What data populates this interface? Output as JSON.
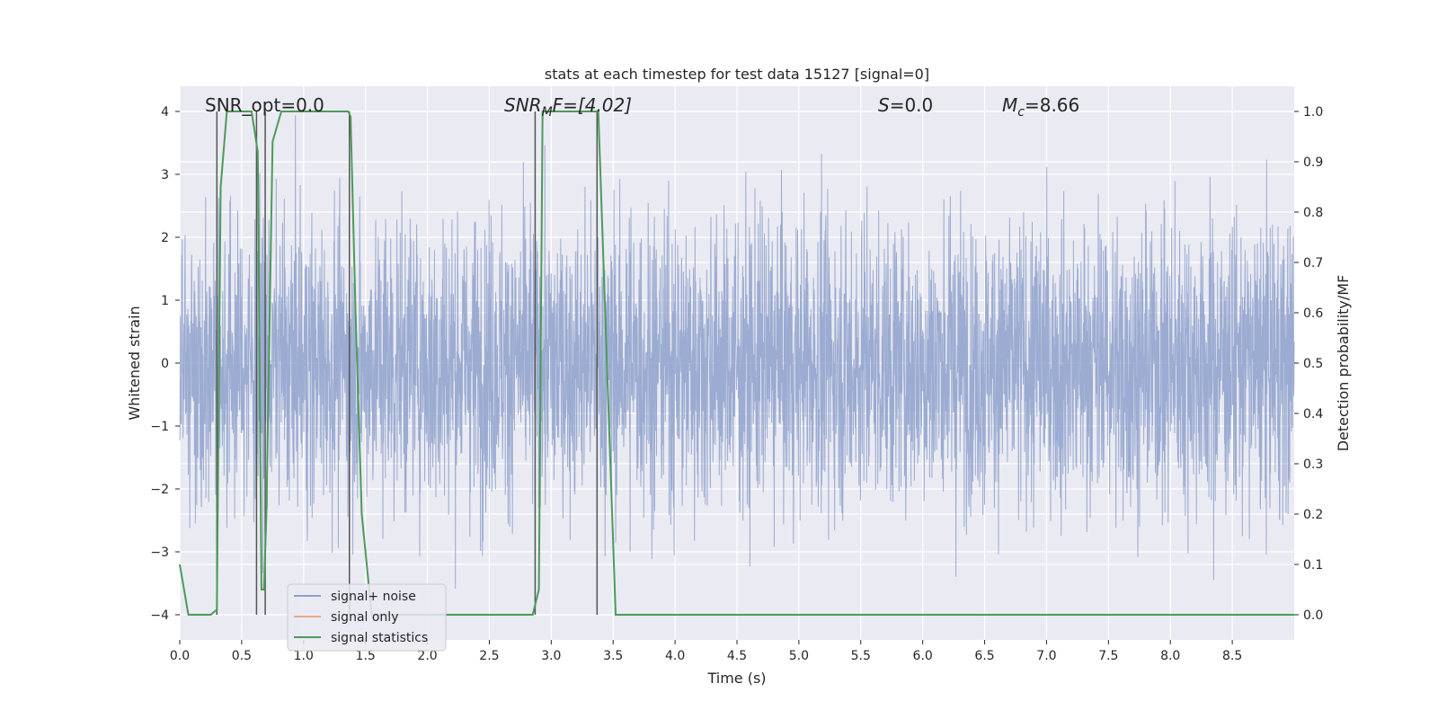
{
  "chart_data": {
    "type": "line",
    "title": "stats at each timestep for test data 15127 [signal=0]",
    "xlabel": "Time (s)",
    "ylabel": "Whitened strain",
    "y2label": "Detection probability/MF",
    "xlim": [
      0,
      9.0
    ],
    "ylim": [
      -4.4,
      4.4
    ],
    "y2lim": [
      -0.05,
      1.05
    ],
    "xticks": [
      0.0,
      0.5,
      1.0,
      1.5,
      2.0,
      2.5,
      3.0,
      3.5,
      4.0,
      4.5,
      5.0,
      5.5,
      6.0,
      6.5,
      7.0,
      7.5,
      8.0,
      8.5
    ],
    "xtick_labels": [
      "0.0",
      "0.5",
      "1.0",
      "1.5",
      "2.0",
      "2.5",
      "3.0",
      "3.5",
      "4.0",
      "4.5",
      "5.0",
      "5.5",
      "6.0",
      "6.5",
      "7.0",
      "7.5",
      "8.0",
      "8.5"
    ],
    "yticks": [
      -4,
      -3,
      -2,
      -1,
      0,
      1,
      2,
      3,
      4
    ],
    "ytick_labels": [
      "−4",
      "−3",
      "−2",
      "−1",
      "0",
      "1",
      "2",
      "3",
      "4"
    ],
    "y2ticks": [
      0.0,
      0.1,
      0.2,
      0.3,
      0.4,
      0.5,
      0.6,
      0.7,
      0.8,
      0.9,
      1.0
    ],
    "y2tick_labels": [
      "0.0",
      "0.1",
      "0.2",
      "0.3",
      "0.4",
      "0.5",
      "0.6",
      "0.7",
      "0.8",
      "0.9",
      "1.0"
    ],
    "grid": true,
    "legend_position": "bottom-left",
    "annotations": {
      "snr_opt": "SNR_opt=0.0",
      "snr_mf_sym": "SNR",
      "snr_mf_sub": "M",
      "snr_mf_rest": "F=[4.02]",
      "s_sym": "S",
      "s_rest": "=0.0",
      "mc_sym": "M",
      "mc_sub": "c",
      "mc_rest": "=8.66"
    },
    "series": [
      {
        "name": "signal+ noise",
        "color": "#8da0cb",
        "axis": "left",
        "description_values": "noise strain, amplitude roughly within -4 to 4"
      },
      {
        "name": "signal only",
        "color": "#e8a98a",
        "axis": "left",
        "values": []
      },
      {
        "name": "signal statistics",
        "color": "#4c9a5a",
        "axis": "right",
        "x": [
          0.0,
          0.07,
          0.1,
          0.25,
          0.3,
          0.33,
          0.38,
          0.4,
          0.58,
          0.63,
          0.66,
          0.68,
          0.7,
          0.75,
          0.82,
          1.3,
          1.36,
          1.38,
          1.42,
          1.47,
          1.55,
          2.5,
          2.85,
          2.9,
          2.93,
          3.1,
          3.38,
          3.45,
          3.52,
          3.6,
          9.0
        ],
        "y": [
          0.1,
          0.0,
          0.0,
          0.0,
          0.01,
          0.85,
          1.0,
          1.0,
          1.0,
          0.92,
          0.05,
          0.05,
          0.2,
          0.94,
          1.0,
          1.0,
          1.0,
          0.99,
          0.6,
          0.2,
          0.0,
          0.0,
          0.0,
          0.05,
          1.0,
          1.0,
          1.0,
          0.5,
          0.0,
          0.0,
          0.0
        ]
      }
    ],
    "vlines_x": [
      0.3,
      0.62,
      0.69,
      1.37,
      2.87,
      3.37
    ],
    "vlines_color": "#555555",
    "background_color": "#eaeaf2",
    "grid_color": "#ffffff"
  }
}
